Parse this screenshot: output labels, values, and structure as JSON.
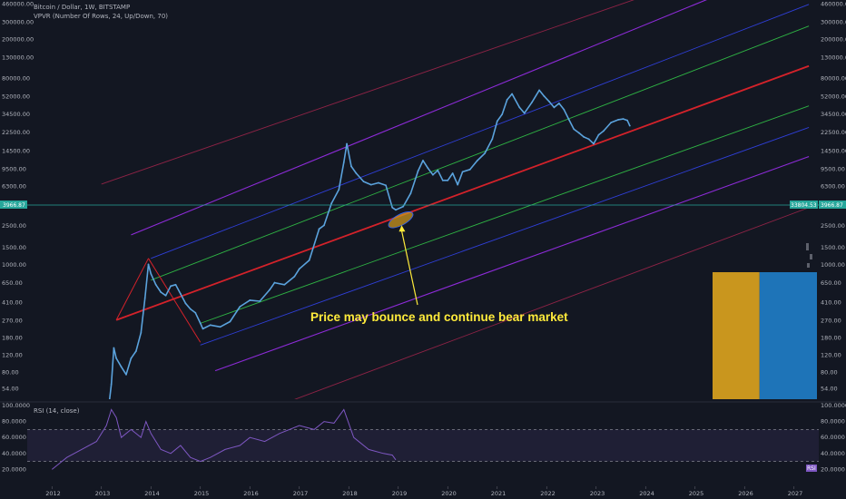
{
  "header": {
    "title": "Bitcoin / Dollar, 1W, BITSTAMP",
    "indicator": "VPVR (Number Of Rows, 24, Up/Down, 70)"
  },
  "rsi": {
    "label": "RSI (14, close)",
    "ticks": [
      "100.0000",
      "80.0000",
      "60.0000",
      "40.0000",
      "20.0000"
    ],
    "tag": "RSI"
  },
  "colors": {
    "background": "#131722",
    "price": "#5ba3dd",
    "median": "#d4222a",
    "inner": "#2fb344",
    "mid": "#2f3fd8",
    "outer": "#8d2bd8",
    "far": "#8e2346",
    "rsi": "#7e57c2",
    "annotation": "#ffeb3b",
    "vpvr_up": "#c9961e",
    "vpvr_down": "#1e74b8"
  },
  "annotation": {
    "text": "Price may bounce and continue bear market"
  },
  "chart_data": {
    "type": "line",
    "x_ticks": [
      "2012",
      "2013",
      "2014",
      "2015",
      "2016",
      "2017",
      "2018",
      "2019",
      "2020",
      "2021",
      "2022",
      "2023",
      "2024",
      "2025",
      "2026",
      "2027"
    ],
    "y_ticks_left": [
      "460000.00",
      "300000.00",
      "200000.00",
      "130000.00",
      "80000.00",
      "52000.00",
      "34500.00",
      "22500.00",
      "14500.00",
      "9500.00",
      "6300.00",
      "3900.00",
      "2500.00",
      "1500.00",
      "1000.00",
      "650.00",
      "410.00",
      "270.00",
      "180.00",
      "120.00",
      "80.00",
      "54.00"
    ],
    "y_ticks_right": [
      "460000.00",
      "300000.00",
      "200000.00",
      "130000.00",
      "80000.00",
      "52000.00",
      "34500.00",
      "22500.00",
      "14500.00",
      "9500.00",
      "6300.00",
      "3900.00",
      "2500.00",
      "1500.00",
      "1000.00",
      "650.00",
      "410.00",
      "270.00",
      "180.00",
      "120.00",
      "80.00",
      "54.00"
    ],
    "y_scale": "log",
    "price_tag_left": "3966.87",
    "price_tag_right_1": "33804.53",
    "price_tag_right_2": "3966.87",
    "series": [
      {
        "x": [
          2013.1,
          2013.2,
          2013.25,
          2013.3,
          2013.4,
          2013.5,
          2013.6,
          2013.7,
          2013.8,
          2013.88,
          2013.95,
          2014.0,
          2014.1,
          2014.2,
          2014.3,
          2014.4,
          2014.5,
          2014.6,
          2014.7,
          2014.8,
          2014.9,
          2015.0,
          2015.05,
          2015.2,
          2015.4,
          2015.6,
          2015.8,
          2016.0,
          2016.2,
          2016.4,
          2016.5,
          2016.7,
          2016.9,
          2017.0,
          2017.2,
          2017.4,
          2017.5,
          2017.65,
          2017.8,
          2017.9,
          2017.96,
          2018.05,
          2018.15,
          2018.3,
          2018.45,
          2018.6,
          2018.75,
          2018.88,
          2018.95,
          2019.1,
          2019.25,
          2019.4,
          2019.5,
          2019.6,
          2019.7,
          2019.8,
          2019.9,
          2020.0,
          2020.1,
          2020.2,
          2020.3,
          2020.45,
          2020.6,
          2020.75,
          2020.9,
          2021.0,
          2021.1,
          2021.2,
          2021.3,
          2021.45,
          2021.55,
          2021.7,
          2021.85,
          2021.95,
          2022.05,
          2022.15,
          2022.25,
          2022.35,
          2022.45,
          2022.55,
          2022.65,
          2022.75,
          2022.85,
          2022.95,
          2023.05,
          2023.15,
          2023.3,
          2023.45,
          2023.55,
          2023.63,
          2023.68
        ],
        "y": [
          22,
          60,
          140,
          110,
          90,
          75,
          110,
          130,
          200,
          450,
          1000,
          800,
          620,
          520,
          480,
          600,
          620,
          500,
          400,
          350,
          320,
          250,
          220,
          240,
          230,
          260,
          370,
          430,
          420,
          550,
          650,
          620,
          750,
          900,
          1100,
          2300,
          2500,
          4200,
          5800,
          11000,
          17000,
          10000,
          8500,
          7000,
          6500,
          6800,
          6400,
          3800,
          3600,
          3900,
          5300,
          9000,
          11500,
          9600,
          8200,
          9100,
          7200,
          7200,
          8500,
          6500,
          8800,
          9300,
          11500,
          13600,
          19000,
          29000,
          34000,
          48000,
          55000,
          40000,
          35000,
          45000,
          60000,
          52000,
          46000,
          40000,
          44000,
          38000,
          30000,
          24000,
          22000,
          20000,
          19000,
          17000,
          21000,
          23000,
          28000,
          30000,
          30500,
          29500,
          26000
        ]
      }
    ],
    "channel_lines": [
      {
        "role": "median",
        "x": [
          2013.3,
          2027.3
        ],
        "y": [
          270,
          106000
        ]
      },
      {
        "role": "inner",
        "x": [
          2014.0,
          2027.3
        ],
        "y": [
          690,
          271000
        ]
      },
      {
        "role": "inner",
        "x": [
          2015.0,
          2027.3
        ],
        "y": [
          250,
          41500
        ]
      },
      {
        "role": "mid",
        "x": [
          2014.0,
          2027.3
        ],
        "y": [
          1150,
          451000
        ]
      },
      {
        "role": "mid",
        "x": [
          2015.0,
          2027.3
        ],
        "y": [
          150,
          25000
        ]
      },
      {
        "role": "outer",
        "x": [
          2013.6,
          2025.6
        ],
        "y": [
          2000,
          600000
        ]
      },
      {
        "role": "outer",
        "x": [
          2015.3,
          2027.3
        ],
        "y": [
          82,
          12600
        ]
      },
      {
        "role": "far",
        "x": [
          2013.0,
          2024.2
        ],
        "y": [
          6600,
          600000
        ]
      },
      {
        "role": "far",
        "x": [
          2016.5,
          2027.3
        ],
        "y": [
          35,
          3800
        ]
      }
    ],
    "pivot_lines": [
      {
        "x": [
          2013.3,
          2013.95
        ],
        "y": [
          270,
          1150
        ]
      },
      {
        "x": [
          2013.95,
          2015.0
        ],
        "y": [
          1150,
          160
        ]
      }
    ],
    "vpvr": {
      "values": [
        0.45,
        0.55
      ]
    },
    "rsi_series": {
      "x": [
        2012.0,
        2012.3,
        2012.6,
        2012.9,
        2013.1,
        2013.2,
        2013.3,
        2013.4,
        2013.6,
        2013.8,
        2013.9,
        2014.0,
        2014.2,
        2014.4,
        2014.6,
        2014.8,
        2015.0,
        2015.2,
        2015.5,
        2015.8,
        2016.0,
        2016.3,
        2016.6,
        2017.0,
        2017.3,
        2017.5,
        2017.7,
        2017.9,
        2018.1,
        2018.4,
        2018.7,
        2018.88,
        2018.95
      ],
      "y": [
        20,
        35,
        45,
        55,
        75,
        95,
        85,
        60,
        70,
        60,
        80,
        65,
        45,
        40,
        50,
        35,
        30,
        35,
        45,
        50,
        60,
        55,
        65,
        75,
        70,
        80,
        78,
        95,
        60,
        45,
        40,
        38,
        32
      ],
      "overbought": 70,
      "oversold": 30
    }
  }
}
